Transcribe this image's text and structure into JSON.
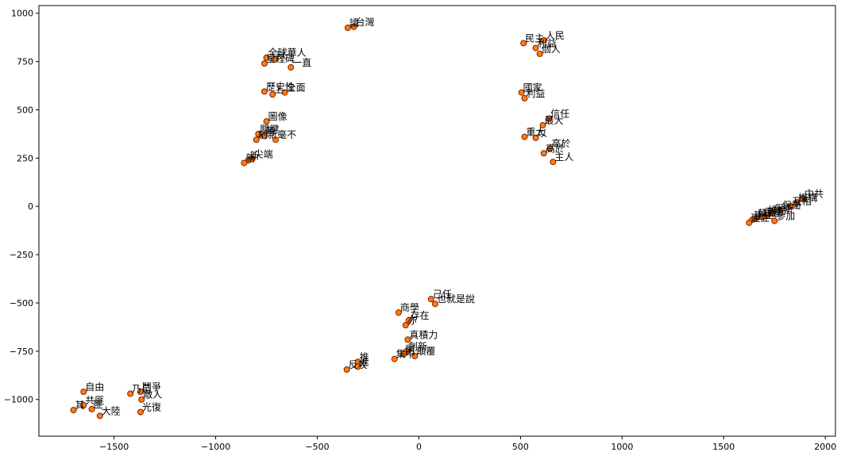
{
  "chart_data": {
    "type": "scatter",
    "title": "",
    "xlabel": "",
    "ylabel": "",
    "xlim": [
      -1870,
      2050
    ],
    "ylim": [
      -1190,
      1040
    ],
    "grid": false,
    "x_ticks": [
      -1500,
      -1000,
      -500,
      0,
      500,
      1000,
      1500,
      2000
    ],
    "y_ticks": [
      1000,
      750,
      500,
      250,
      0,
      -250,
      -500,
      -750,
      -1000
    ],
    "x_tick_labels": [
      "−1500",
      "−1000",
      "−500",
      "0",
      "500",
      "1000",
      "1500",
      "2000"
    ],
    "y_tick_labels": [
      "1000",
      "750",
      "500",
      "250",
      "0",
      "−250",
      "−500",
      "−750",
      "−1000"
    ],
    "marker_color": "#ff7f0e",
    "marker_edge_color": "#8b1a00",
    "points": [
      {
        "x": -350,
        "y": 925,
        "label": "讀"
      },
      {
        "x": -320,
        "y": 930,
        "label": "台灣"
      },
      {
        "x": -750,
        "y": 770,
        "label": "全球華人"
      },
      {
        "x": -710,
        "y": 760,
        "label": "以"
      },
      {
        "x": -760,
        "y": 740,
        "label": "里程碑"
      },
      {
        "x": -630,
        "y": 720,
        "label": "一直"
      },
      {
        "x": -760,
        "y": 595,
        "label": "歷史性"
      },
      {
        "x": -720,
        "y": 580,
        "label": "上"
      },
      {
        "x": -660,
        "y": 590,
        "label": "全面"
      },
      {
        "x": -750,
        "y": 440,
        "label": "圖像"
      },
      {
        "x": -790,
        "y": 375,
        "label": "關鍵"
      },
      {
        "x": -760,
        "y": 365,
        "label": "時"
      },
      {
        "x": -800,
        "y": 345,
        "label": "創新"
      },
      {
        "x": -705,
        "y": 345,
        "label": "毫不"
      },
      {
        "x": -820,
        "y": 245,
        "label": "尖端"
      },
      {
        "x": -840,
        "y": 238,
        "label": "新"
      },
      {
        "x": -860,
        "y": 225,
        "label": "新"
      },
      {
        "x": 515,
        "y": 845,
        "label": "民主"
      },
      {
        "x": 615,
        "y": 860,
        "label": "人民"
      },
      {
        "x": 575,
        "y": 820,
        "label": "利益"
      },
      {
        "x": 595,
        "y": 790,
        "label": "個人"
      },
      {
        "x": 505,
        "y": 590,
        "label": "國家"
      },
      {
        "x": 520,
        "y": 560,
        "label": "利益"
      },
      {
        "x": 640,
        "y": 455,
        "label": "信任"
      },
      {
        "x": 610,
        "y": 420,
        "label": "最大"
      },
      {
        "x": 520,
        "y": 360,
        "label": "重大"
      },
      {
        "x": 575,
        "y": 355,
        "label": "以"
      },
      {
        "x": 645,
        "y": 300,
        "label": "高於"
      },
      {
        "x": 615,
        "y": 275,
        "label": "高於"
      },
      {
        "x": 660,
        "y": 230,
        "label": "主人"
      },
      {
        "x": 1890,
        "y": 40,
        "label": "中共"
      },
      {
        "x": 1860,
        "y": 20,
        "label": "機構"
      },
      {
        "x": 1830,
        "y": 0,
        "label": "互相"
      },
      {
        "x": 1780,
        "y": -20,
        "label": "保衛"
      },
      {
        "x": 1740,
        "y": -35,
        "label": "保衛"
      },
      {
        "x": 1710,
        "y": -45,
        "label": "維持"
      },
      {
        "x": 1690,
        "y": -55,
        "label": "保衛"
      },
      {
        "x": 1660,
        "y": -60,
        "label": "韓戰"
      },
      {
        "x": 1640,
        "y": -70,
        "label": "建立"
      },
      {
        "x": 1625,
        "y": -85,
        "label": "建立"
      },
      {
        "x": 1750,
        "y": -75,
        "label": "參加"
      },
      {
        "x": 60,
        "y": -480,
        "label": "己任"
      },
      {
        "x": 80,
        "y": -505,
        "label": "也就是說"
      },
      {
        "x": -100,
        "y": -550,
        "label": "商學"
      },
      {
        "x": -50,
        "y": -590,
        "label": "存在"
      },
      {
        "x": -65,
        "y": -615,
        "label": "亦"
      },
      {
        "x": -55,
        "y": -690,
        "label": "真積力"
      },
      {
        "x": -60,
        "y": -750,
        "label": "創新"
      },
      {
        "x": -75,
        "y": -765,
        "label": "削"
      },
      {
        "x": -20,
        "y": -775,
        "label": "顛覆"
      },
      {
        "x": -120,
        "y": -790,
        "label": "集中"
      },
      {
        "x": -300,
        "y": -805,
        "label": "推"
      },
      {
        "x": -300,
        "y": -830,
        "label": "進"
      },
      {
        "x": -355,
        "y": -845,
        "label": "反攻"
      },
      {
        "x": -1650,
        "y": -960,
        "label": "自由"
      },
      {
        "x": -1420,
        "y": -970,
        "label": "乃是"
      },
      {
        "x": -1370,
        "y": -960,
        "label": "鬥爭"
      },
      {
        "x": -1365,
        "y": -1000,
        "label": "敵人"
      },
      {
        "x": -1650,
        "y": -1030,
        "label": "共匪"
      },
      {
        "x": -1610,
        "y": -1050,
        "label": "匪"
      },
      {
        "x": -1700,
        "y": -1055,
        "label": "其"
      },
      {
        "x": -1570,
        "y": -1085,
        "label": "大陸"
      },
      {
        "x": -1370,
        "y": -1065,
        "label": "光復"
      }
    ]
  }
}
